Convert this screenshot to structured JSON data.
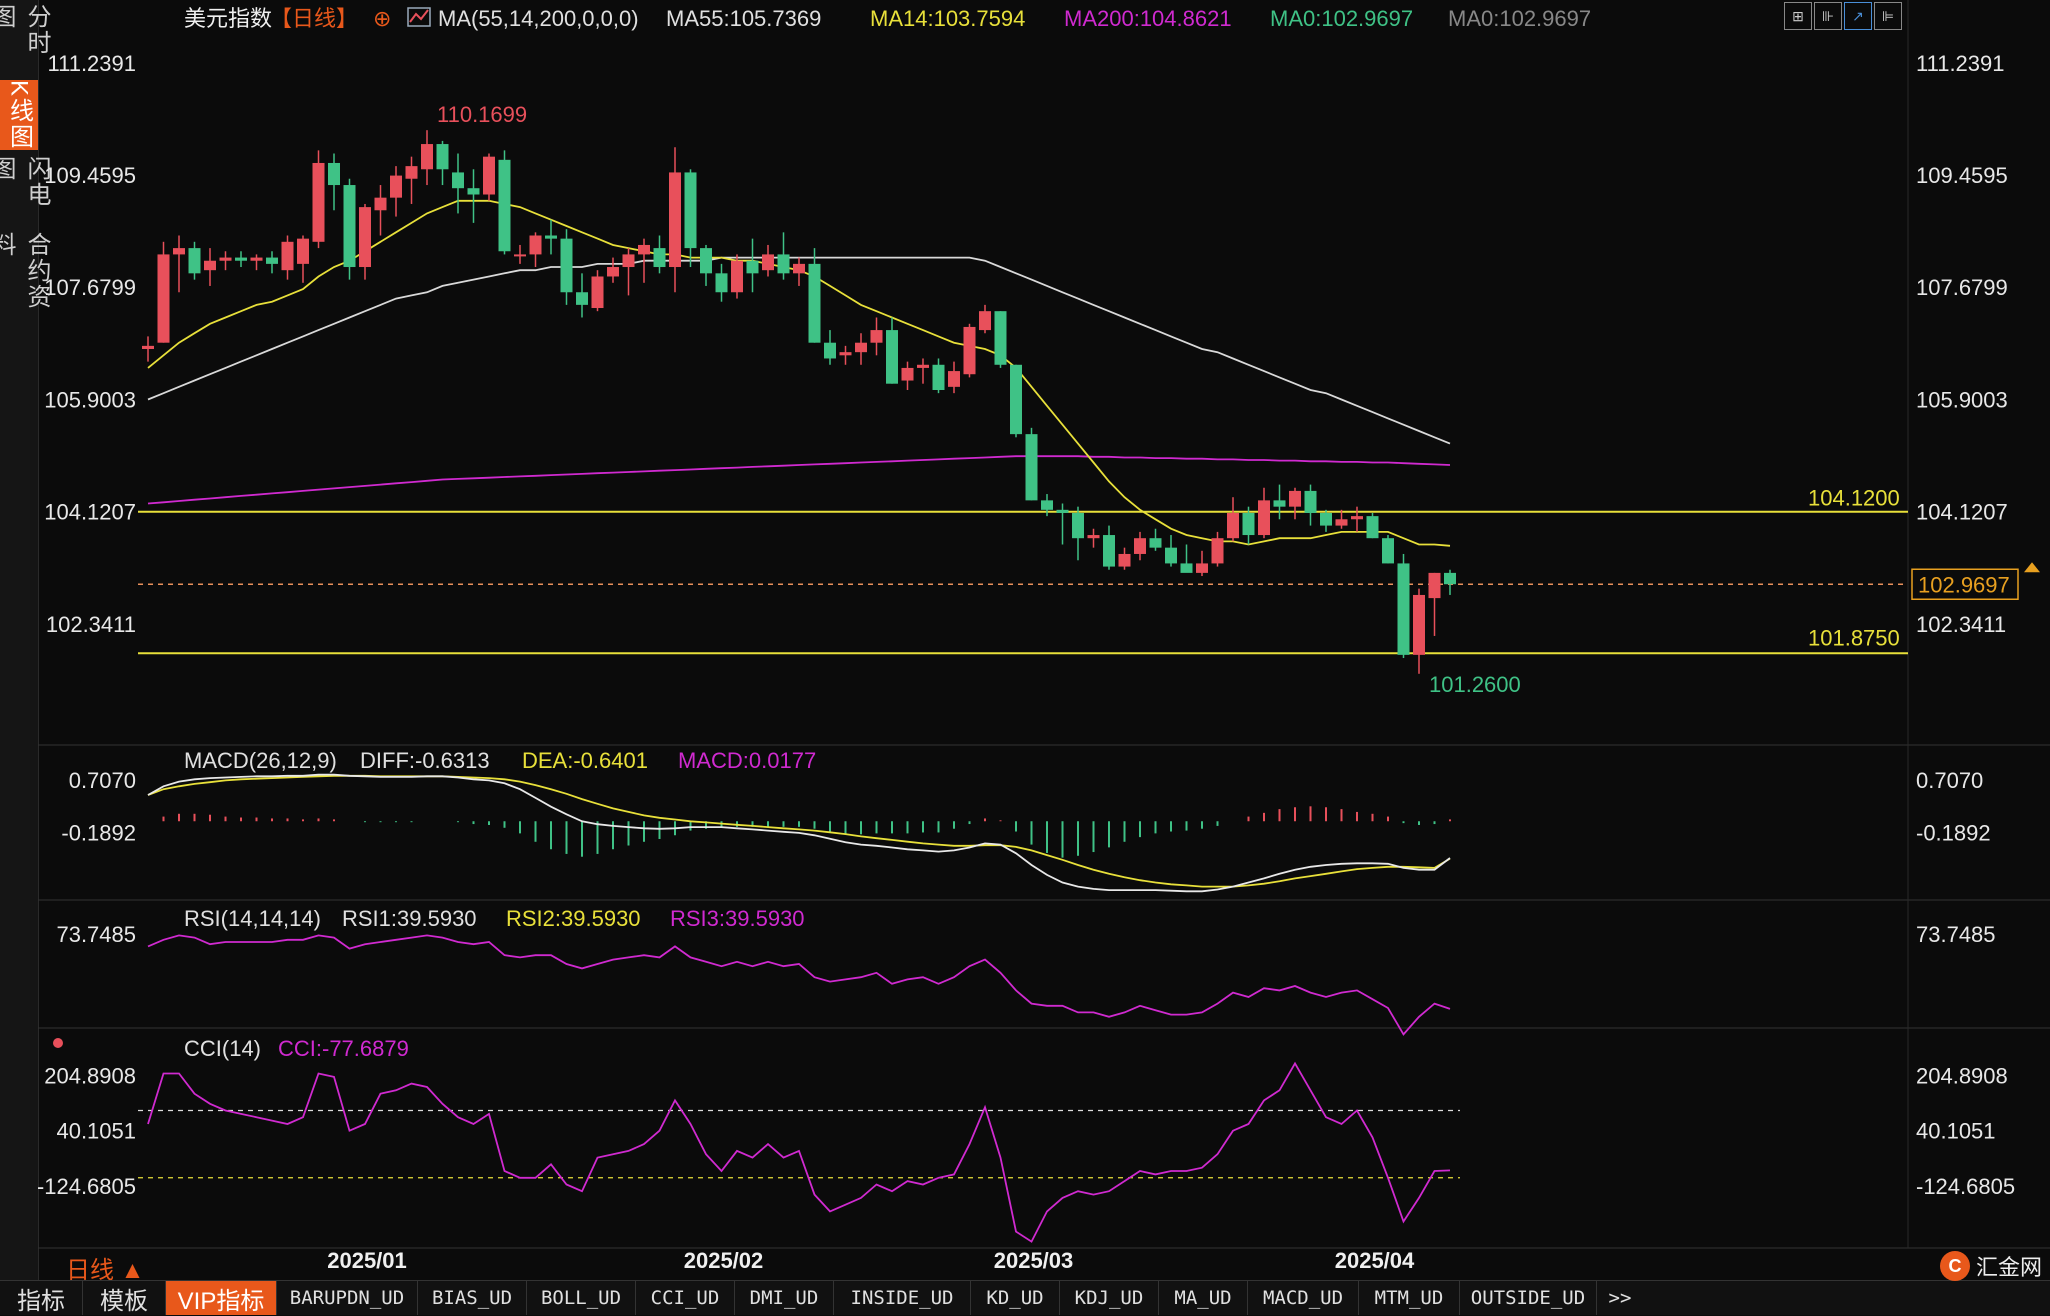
{
  "sidebar": {
    "tabs": [
      {
        "label": "分时图",
        "active": false
      },
      {
        "label": "K线图",
        "active": true
      },
      {
        "label": "闪电图",
        "active": false
      },
      {
        "label": "合约资料",
        "active": false
      }
    ]
  },
  "main_legend": {
    "name": "美元指数",
    "period": "【日线】",
    "ma_set": "MA(55,14,200,0,0,0)",
    "ma55": "MA55:105.7369",
    "ma14": "MA14:103.7594",
    "ma200": "MA200:104.8621",
    "ma0a": "MA0:102.9697",
    "ma0b": "MA0:102.9697"
  },
  "price_axis": {
    "ticks": [
      "111.2391",
      "109.4595",
      "107.6799",
      "105.9003",
      "104.1207",
      "102.3411"
    ],
    "current_price": "102.9697",
    "high_label": "110.1699",
    "low_label": "101.2600",
    "hline_upper": "104.1200",
    "hline_lower": "101.8750"
  },
  "macd_panel": {
    "title": "MACD(26,12,9)",
    "diff": "DIFF:-0.6313",
    "dea": "DEA:-0.6401",
    "macd": "MACD:0.0177",
    "ticks": [
      "0.7070",
      "-0.1892"
    ]
  },
  "rsi_panel": {
    "title": "RSI(14,14,14)",
    "rsi1": "RSI1:39.5930",
    "rsi2": "RSI2:39.5930",
    "rsi3": "RSI3:39.5930",
    "ticks": [
      "73.7485"
    ]
  },
  "cci_panel": {
    "title": "CCI(14)",
    "cci": "CCI:-77.6879",
    "ticks": [
      "204.8908",
      "40.1051",
      "-124.6805"
    ]
  },
  "x_axis": {
    "labels": [
      "2025/01",
      "2025/02",
      "2025/03",
      "2025/04"
    ]
  },
  "period_selector": "日线 ▲",
  "bottom_bar": {
    "items": [
      "指标",
      "模板",
      "VIP指标",
      "BARUPDN_UD",
      "BIAS_UD",
      "BOLL_UD",
      "CCI_UD",
      "DMI_UD",
      "INSIDE_UD",
      "KD_UD",
      "KDJ_UD",
      "MA_UD",
      "MACD_UD",
      "MTM_UD",
      "OUTSIDE_UD",
      ">>"
    ]
  },
  "logo_text": "汇金网",
  "colors": {
    "up": "#e8505b",
    "down": "#3fc286",
    "ma55": "#d9d9d9",
    "ma14": "#e8e03a",
    "ma200": "#d02ad0",
    "accent": "#e8581b"
  },
  "chart_data": {
    "type": "candlestick",
    "title": "美元指数 日线",
    "y_range": [
      100.5,
      111.6
    ],
    "candles_ohlc": [
      [
        106.7,
        106.9,
        106.5,
        106.75
      ],
      [
        106.8,
        108.4,
        106.8,
        108.2
      ],
      [
        108.2,
        108.5,
        107.6,
        108.3
      ],
      [
        108.3,
        108.4,
        107.8,
        107.9
      ],
      [
        107.95,
        108.3,
        107.7,
        108.1
      ],
      [
        108.1,
        108.25,
        107.95,
        108.15
      ],
      [
        108.15,
        108.25,
        108.0,
        108.1
      ],
      [
        108.1,
        108.2,
        107.95,
        108.15
      ],
      [
        108.15,
        108.25,
        107.9,
        108.05
      ],
      [
        107.95,
        108.5,
        107.8,
        108.4
      ],
      [
        108.05,
        108.5,
        107.75,
        108.45
      ],
      [
        108.4,
        109.85,
        108.3,
        109.65
      ],
      [
        109.65,
        109.8,
        108.9,
        109.3
      ],
      [
        109.3,
        109.4,
        107.8,
        108.0
      ],
      [
        108.0,
        109.0,
        107.8,
        108.95
      ],
      [
        108.9,
        109.3,
        108.5,
        109.1
      ],
      [
        109.1,
        109.6,
        108.8,
        109.45
      ],
      [
        109.4,
        109.75,
        109.0,
        109.6
      ],
      [
        109.55,
        110.17,
        109.3,
        109.95
      ],
      [
        109.95,
        110.0,
        109.3,
        109.55
      ],
      [
        109.5,
        109.8,
        108.85,
        109.25
      ],
      [
        109.25,
        109.55,
        108.7,
        109.15
      ],
      [
        109.15,
        109.8,
        109.05,
        109.75
      ],
      [
        109.7,
        109.85,
        108.2,
        108.25
      ],
      [
        108.2,
        108.35,
        108.05,
        108.2
      ],
      [
        108.2,
        108.55,
        108.0,
        108.5
      ],
      [
        108.5,
        108.75,
        108.2,
        108.45
      ],
      [
        108.45,
        108.6,
        107.4,
        107.6
      ],
      [
        107.6,
        107.9,
        107.2,
        107.4
      ],
      [
        107.35,
        107.95,
        107.3,
        107.85
      ],
      [
        107.85,
        108.15,
        107.75,
        108.0
      ],
      [
        108.0,
        108.3,
        107.55,
        108.2
      ],
      [
        108.2,
        108.45,
        107.75,
        108.35
      ],
      [
        108.3,
        108.5,
        107.9,
        108.0
      ],
      [
        108.0,
        109.9,
        107.6,
        109.5
      ],
      [
        109.5,
        109.55,
        108.0,
        108.3
      ],
      [
        108.3,
        108.35,
        107.7,
        107.9
      ],
      [
        107.9,
        108.05,
        107.45,
        107.6
      ],
      [
        107.6,
        108.2,
        107.5,
        108.1
      ],
      [
        108.1,
        108.45,
        107.6,
        107.9
      ],
      [
        107.95,
        108.35,
        107.85,
        108.2
      ],
      [
        108.2,
        108.55,
        107.8,
        107.9
      ],
      [
        107.9,
        108.15,
        107.7,
        108.05
      ],
      [
        108.05,
        108.3,
        106.8,
        106.8
      ],
      [
        106.8,
        107.0,
        106.45,
        106.55
      ],
      [
        106.6,
        106.75,
        106.45,
        106.65
      ],
      [
        106.65,
        106.95,
        106.45,
        106.8
      ],
      [
        106.8,
        107.2,
        106.6,
        107.0
      ],
      [
        107.0,
        107.2,
        106.15,
        106.15
      ],
      [
        106.2,
        106.5,
        106.05,
        106.4
      ],
      [
        106.4,
        106.55,
        106.15,
        106.45
      ],
      [
        106.45,
        106.55,
        106.0,
        106.05
      ],
      [
        106.1,
        106.5,
        106.0,
        106.35
      ],
      [
        106.3,
        107.1,
        106.25,
        107.05
      ],
      [
        107.0,
        107.4,
        106.95,
        107.3
      ],
      [
        107.3,
        107.3,
        106.4,
        106.45
      ],
      [
        106.45,
        106.45,
        105.3,
        105.35
      ],
      [
        105.35,
        105.45,
        104.3,
        104.3
      ],
      [
        104.3,
        104.4,
        104.05,
        104.15
      ],
      [
        104.15,
        104.25,
        103.6,
        104.1
      ],
      [
        104.1,
        104.2,
        103.35,
        103.7
      ],
      [
        103.7,
        103.85,
        103.55,
        103.75
      ],
      [
        103.75,
        103.9,
        103.2,
        103.25
      ],
      [
        103.25,
        103.55,
        103.2,
        103.45
      ],
      [
        103.45,
        103.8,
        103.35,
        103.7
      ],
      [
        103.7,
        103.85,
        103.5,
        103.55
      ],
      [
        103.55,
        103.75,
        103.25,
        103.3
      ],
      [
        103.3,
        103.6,
        103.2,
        103.15
      ],
      [
        103.15,
        103.5,
        103.1,
        103.3
      ],
      [
        103.3,
        103.8,
        103.25,
        103.7
      ],
      [
        103.7,
        104.35,
        103.65,
        104.1
      ],
      [
        104.1,
        104.2,
        103.6,
        103.75
      ],
      [
        103.75,
        104.5,
        103.7,
        104.3
      ],
      [
        104.3,
        104.55,
        104.0,
        104.2
      ],
      [
        104.2,
        104.5,
        104.0,
        104.45
      ],
      [
        104.45,
        104.55,
        103.9,
        104.1
      ],
      [
        104.1,
        104.15,
        103.8,
        103.9
      ],
      [
        103.9,
        104.15,
        103.85,
        104.0
      ],
      [
        104.0,
        104.2,
        103.8,
        104.05
      ],
      [
        104.05,
        104.1,
        103.7,
        103.7
      ],
      [
        103.7,
        103.75,
        103.3,
        103.3
      ],
      [
        103.3,
        103.45,
        101.8,
        101.85
      ],
      [
        101.85,
        102.9,
        101.55,
        102.8
      ],
      [
        102.75,
        103.15,
        102.15,
        103.15
      ],
      [
        103.15,
        103.2,
        102.8,
        102.97
      ]
    ],
    "ma55": [
      105.9,
      106.0,
      106.1,
      106.2,
      106.3,
      106.4,
      106.5,
      106.6,
      106.7,
      106.8,
      106.9,
      107.0,
      107.1,
      107.2,
      107.3,
      107.4,
      107.5,
      107.55,
      107.6,
      107.7,
      107.75,
      107.8,
      107.85,
      107.9,
      107.95,
      107.95,
      108.0,
      108.0,
      108.0,
      108.05,
      108.05,
      108.05,
      108.1,
      108.1,
      108.1,
      108.1,
      108.1,
      108.15,
      108.15,
      108.15,
      108.15,
      108.15,
      108.15,
      108.15,
      108.15,
      108.15,
      108.15,
      108.15,
      108.15,
      108.15,
      108.15,
      108.15,
      108.15,
      108.15,
      108.1,
      108.0,
      107.9,
      107.8,
      107.7,
      107.6,
      107.5,
      107.4,
      107.3,
      107.2,
      107.1,
      107.0,
      106.9,
      106.8,
      106.7,
      106.65,
      106.55,
      106.45,
      106.35,
      106.25,
      106.15,
      106.05,
      106.0,
      105.9,
      105.8,
      105.7,
      105.6,
      105.5,
      105.4,
      105.3,
      105.2
    ],
    "ma14": [
      106.4,
      106.6,
      106.8,
      106.95,
      107.1,
      107.2,
      107.3,
      107.4,
      107.45,
      107.55,
      107.65,
      107.85,
      108.0,
      108.1,
      108.25,
      108.4,
      108.55,
      108.7,
      108.85,
      108.95,
      109.05,
      109.05,
      109.05,
      109.0,
      108.95,
      108.85,
      108.75,
      108.65,
      108.55,
      108.45,
      108.35,
      108.3,
      108.25,
      108.2,
      108.2,
      108.15,
      108.15,
      108.15,
      108.1,
      108.1,
      108.05,
      108.0,
      107.95,
      107.85,
      107.7,
      107.55,
      107.4,
      107.3,
      107.2,
      107.1,
      107.0,
      106.9,
      106.8,
      106.75,
      106.7,
      106.6,
      106.4,
      106.1,
      105.8,
      105.5,
      105.2,
      104.9,
      104.6,
      104.35,
      104.15,
      104.0,
      103.85,
      103.75,
      103.7,
      103.65,
      103.65,
      103.6,
      103.65,
      103.7,
      103.7,
      103.7,
      103.75,
      103.8,
      103.8,
      103.8,
      103.8,
      103.7,
      103.6,
      103.6,
      103.58
    ],
    "ma200": [
      104.25,
      104.27,
      104.29,
      104.31,
      104.33,
      104.35,
      104.37,
      104.39,
      104.41,
      104.43,
      104.45,
      104.47,
      104.49,
      104.51,
      104.53,
      104.55,
      104.57,
      104.59,
      104.61,
      104.63,
      104.64,
      104.65,
      104.66,
      104.67,
      104.68,
      104.69,
      104.7,
      104.71,
      104.72,
      104.73,
      104.74,
      104.75,
      104.76,
      104.77,
      104.78,
      104.79,
      104.8,
      104.81,
      104.82,
      104.83,
      104.84,
      104.85,
      104.86,
      104.87,
      104.88,
      104.89,
      104.9,
      104.91,
      104.92,
      104.93,
      104.94,
      104.95,
      104.96,
      104.97,
      104.98,
      104.99,
      105.0,
      105.0,
      105.0,
      105.0,
      105.0,
      104.99,
      104.99,
      104.98,
      104.98,
      104.97,
      104.97,
      104.96,
      104.96,
      104.95,
      104.95,
      104.94,
      104.94,
      104.93,
      104.93,
      104.92,
      104.92,
      104.91,
      104.91,
      104.9,
      104.9,
      104.89,
      104.88,
      104.87,
      104.86
    ],
    "macd_range": [
      -1.35,
      1.05
    ],
    "macd_diff": [
      0.45,
      0.6,
      0.68,
      0.72,
      0.74,
      0.75,
      0.76,
      0.77,
      0.77,
      0.78,
      0.78,
      0.8,
      0.8,
      0.78,
      0.77,
      0.76,
      0.76,
      0.76,
      0.77,
      0.77,
      0.75,
      0.72,
      0.7,
      0.65,
      0.55,
      0.4,
      0.25,
      0.12,
      0.0,
      -0.05,
      -0.08,
      -0.1,
      -0.12,
      -0.13,
      -0.12,
      -0.1,
      -0.1,
      -0.1,
      -0.12,
      -0.14,
      -0.16,
      -0.18,
      -0.2,
      -0.24,
      -0.3,
      -0.36,
      -0.4,
      -0.42,
      -0.45,
      -0.48,
      -0.5,
      -0.52,
      -0.5,
      -0.45,
      -0.38,
      -0.4,
      -0.55,
      -0.75,
      -0.92,
      -1.05,
      -1.12,
      -1.16,
      -1.18,
      -1.18,
      -1.18,
      -1.18,
      -1.19,
      -1.2,
      -1.2,
      -1.17,
      -1.12,
      -1.05,
      -0.98,
      -0.9,
      -0.83,
      -0.78,
      -0.75,
      -0.73,
      -0.72,
      -0.72,
      -0.73,
      -0.8,
      -0.83,
      -0.83,
      -0.63
    ],
    "macd_dea": [
      0.45,
      0.55,
      0.6,
      0.64,
      0.67,
      0.7,
      0.72,
      0.73,
      0.74,
      0.75,
      0.76,
      0.77,
      0.78,
      0.78,
      0.78,
      0.77,
      0.77,
      0.77,
      0.77,
      0.77,
      0.76,
      0.75,
      0.74,
      0.72,
      0.68,
      0.62,
      0.55,
      0.47,
      0.38,
      0.3,
      0.22,
      0.16,
      0.1,
      0.06,
      0.03,
      0.0,
      -0.02,
      -0.04,
      -0.06,
      -0.08,
      -0.1,
      -0.12,
      -0.14,
      -0.16,
      -0.19,
      -0.22,
      -0.26,
      -0.29,
      -0.32,
      -0.35,
      -0.38,
      -0.4,
      -0.42,
      -0.42,
      -0.41,
      -0.41,
      -0.44,
      -0.5,
      -0.58,
      -0.66,
      -0.75,
      -0.83,
      -0.9,
      -0.96,
      -1.01,
      -1.05,
      -1.08,
      -1.1,
      -1.12,
      -1.12,
      -1.12,
      -1.1,
      -1.07,
      -1.03,
      -0.98,
      -0.94,
      -0.9,
      -0.86,
      -0.82,
      -0.8,
      -0.78,
      -0.78,
      -0.79,
      -0.8,
      -0.64
    ],
    "macd_hist": [
      0.0,
      0.05,
      0.08,
      0.08,
      0.07,
      0.05,
      0.04,
      0.04,
      0.03,
      0.03,
      0.02,
      0.03,
      0.02,
      0.0,
      -0.01,
      -0.01,
      -0.01,
      -0.01,
      0.0,
      0.0,
      -0.01,
      -0.03,
      -0.04,
      -0.07,
      -0.13,
      -0.22,
      -0.3,
      -0.35,
      -0.38,
      -0.35,
      -0.3,
      -0.26,
      -0.22,
      -0.19,
      -0.15,
      -0.1,
      -0.08,
      -0.06,
      -0.06,
      -0.06,
      -0.06,
      -0.06,
      -0.06,
      -0.08,
      -0.11,
      -0.14,
      -0.14,
      -0.13,
      -0.13,
      -0.13,
      -0.12,
      -0.12,
      -0.08,
      -0.03,
      0.03,
      0.01,
      -0.11,
      -0.25,
      -0.34,
      -0.39,
      -0.37,
      -0.33,
      -0.28,
      -0.22,
      -0.17,
      -0.13,
      -0.11,
      -0.1,
      -0.08,
      -0.05,
      0.0,
      0.05,
      0.09,
      0.13,
      0.15,
      0.16,
      0.15,
      0.13,
      0.1,
      0.08,
      0.05,
      -0.02,
      -0.04,
      -0.03,
      0.02
    ],
    "rsi_range": [
      30,
      80
    ],
    "rsi": [
      68,
      71,
      73,
      72,
      69,
      70,
      70,
      70,
      70,
      71,
      71,
      73,
      72,
      67,
      69,
      70,
      71,
      72,
      73,
      72,
      70,
      69,
      70,
      64,
      63,
      64,
      64,
      60,
      58,
      60,
      62,
      63,
      64,
      63,
      68,
      63,
      61,
      59,
      61,
      59,
      61,
      59,
      60,
      54,
      52,
      53,
      54,
      56,
      51,
      53,
      54,
      51,
      54,
      59,
      62,
      56,
      48,
      42,
      41,
      41,
      38,
      38,
      36,
      38,
      41,
      39,
      37,
      37,
      38,
      42,
      47,
      45,
      49,
      48,
      50,
      47,
      45,
      47,
      48,
      44,
      40,
      28,
      36,
      42,
      39.6
    ],
    "cci_range": [
      -300,
      280
    ],
    "cci": [
      60,
      210,
      210,
      150,
      120,
      100,
      90,
      80,
      70,
      60,
      80,
      210,
      200,
      40,
      60,
      150,
      160,
      180,
      170,
      120,
      80,
      60,
      90,
      -80,
      -100,
      -100,
      -60,
      -120,
      -140,
      -40,
      -30,
      -20,
      0,
      40,
      130,
      60,
      -30,
      -80,
      -20,
      -40,
      0,
      -40,
      -20,
      -150,
      -200,
      -180,
      -160,
      -120,
      -140,
      -110,
      -120,
      -100,
      -90,
      0,
      110,
      -40,
      -260,
      -290,
      -200,
      -160,
      -140,
      -150,
      -140,
      -110,
      -80,
      -90,
      -80,
      -80,
      -70,
      -30,
      40,
      60,
      130,
      160,
      240,
      160,
      80,
      60,
      100,
      20,
      -100,
      -230,
      -160,
      -80,
      -78
    ]
  }
}
